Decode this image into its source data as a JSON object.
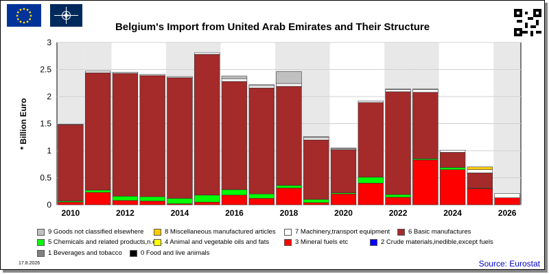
{
  "title": "Belgium's Import from United Arab Emirates and Their Structure",
  "date": "17.8.2026",
  "source": "Source: Eurostat",
  "chart_data": {
    "type": "bar",
    "stacked": true,
    "ylabel": "* Billion Euro",
    "ylim": [
      0,
      3
    ],
    "yticks": [
      "0",
      "0.5",
      "1",
      "1.5",
      "2",
      "2.5",
      "3"
    ],
    "xtick_labels": [
      "2010",
      "2012",
      "2014",
      "2016",
      "2018",
      "2020",
      "2022",
      "2024",
      "2026"
    ],
    "categories": [
      "2010",
      "2011",
      "2012",
      "2013",
      "2014",
      "2015",
      "2016",
      "2017",
      "2018",
      "2019",
      "2020",
      "2021",
      "2022",
      "2023",
      "2024",
      "2025",
      "2026"
    ],
    "series": [
      {
        "name": "0 Food and live animals",
        "color": "#000000",
        "values": [
          0,
          0,
          0,
          0,
          0,
          0,
          0,
          0,
          0,
          0,
          0,
          0,
          0,
          0,
          0,
          0,
          0
        ]
      },
      {
        "name": "1 Beverages and tobacco",
        "color": "#808080",
        "values": [
          0,
          0,
          0,
          0,
          0,
          0,
          0,
          0,
          0,
          0,
          0,
          0,
          0,
          0,
          0,
          0,
          0
        ]
      },
      {
        "name": "2 Crude materials,inedible,except fuels",
        "color": "#0000ff",
        "values": [
          0,
          0,
          0,
          0,
          0,
          0,
          0,
          0,
          0,
          0,
          0,
          0,
          0,
          0,
          0,
          0,
          0
        ]
      },
      {
        "name": "3 Mineral fuels etc",
        "color": "#ff0000",
        "values": [
          0.05,
          0.23,
          0.08,
          0.07,
          0.02,
          0.05,
          0.18,
          0.12,
          0.31,
          0.04,
          0.2,
          0.4,
          0.14,
          0.83,
          0.65,
          0.3,
          0.13
        ]
      },
      {
        "name": "4 Animal and vegetable oils and fats",
        "color": "#ffff00",
        "values": [
          0,
          0,
          0,
          0,
          0,
          0,
          0,
          0,
          0,
          0,
          0,
          0,
          0,
          0,
          0,
          0,
          0
        ]
      },
      {
        "name": "5 Chemicals and related products,n.e.s.",
        "color": "#00ff00",
        "values": [
          0.02,
          0.04,
          0.08,
          0.08,
          0.1,
          0.13,
          0.1,
          0.08,
          0.05,
          0.06,
          0.02,
          0.11,
          0.05,
          0.02,
          0.04,
          0.01,
          0
        ]
      },
      {
        "name": "6 Basic manufactures",
        "color": "#a52a2a",
        "values": [
          1.41,
          2.17,
          2.27,
          2.24,
          2.23,
          2.6,
          2.0,
          1.96,
          1.83,
          1.1,
          0.8,
          1.38,
          1.9,
          1.23,
          0.28,
          0.28,
          0
        ]
      },
      {
        "name": "7 Machinery,transport equipment",
        "color": "#ffffff",
        "values": [
          0.01,
          0.03,
          0.02,
          0.02,
          0.02,
          0.03,
          0.05,
          0.04,
          0.05,
          0.04,
          0.02,
          0.03,
          0.04,
          0.05,
          0.04,
          0.06,
          0.08
        ]
      },
      {
        "name": "8 Miscellaneous manufactured articles",
        "color": "#ffcc00",
        "values": [
          0,
          0,
          0,
          0,
          0,
          0,
          0,
          0,
          0,
          0,
          0,
          0,
          0,
          0,
          0,
          0.05,
          0
        ]
      },
      {
        "name": "9 Goods not classified elsewhere",
        "color": "#c0c0c0",
        "values": [
          0,
          0,
          0,
          0,
          0,
          0,
          0.05,
          0.02,
          0.22,
          0.02,
          0.01,
          0,
          0.01,
          0.01,
          0,
          0,
          0
        ]
      }
    ],
    "legend": {
      "placement": "bottom"
    }
  }
}
